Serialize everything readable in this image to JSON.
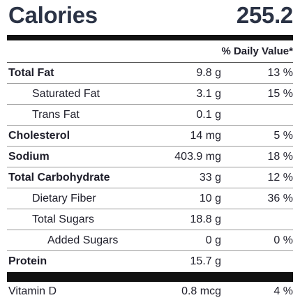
{
  "calories": {
    "label": "Calories",
    "value": "255.2"
  },
  "daily_value_header": "% Daily Value*",
  "nutrients": [
    {
      "name": "Total Fat",
      "amount": "9.8 g",
      "dv": "13 %"
    },
    {
      "name": "Saturated Fat",
      "amount": "3.1 g",
      "dv": "15 %"
    },
    {
      "name": "Trans Fat",
      "amount": "0.1 g",
      "dv": ""
    },
    {
      "name": "Cholesterol",
      "amount": "14 mg",
      "dv": "5 %"
    },
    {
      "name": "Sodium",
      "amount": "403.9 mg",
      "dv": "18 %"
    },
    {
      "name": "Total Carbohydrate",
      "amount": "33 g",
      "dv": "12 %"
    },
    {
      "name": "Dietary Fiber",
      "amount": "10 g",
      "dv": "36 %"
    },
    {
      "name": "Total Sugars",
      "amount": "18.8 g",
      "dv": ""
    },
    {
      "name": "Added Sugars",
      "amount": "0 g",
      "dv": "0 %"
    },
    {
      "name": "Protein",
      "amount": "15.7 g",
      "dv": ""
    }
  ],
  "vitamins": [
    {
      "name": "Vitamin D",
      "amount": "0.8 mcg",
      "dv": "4 %"
    }
  ]
}
